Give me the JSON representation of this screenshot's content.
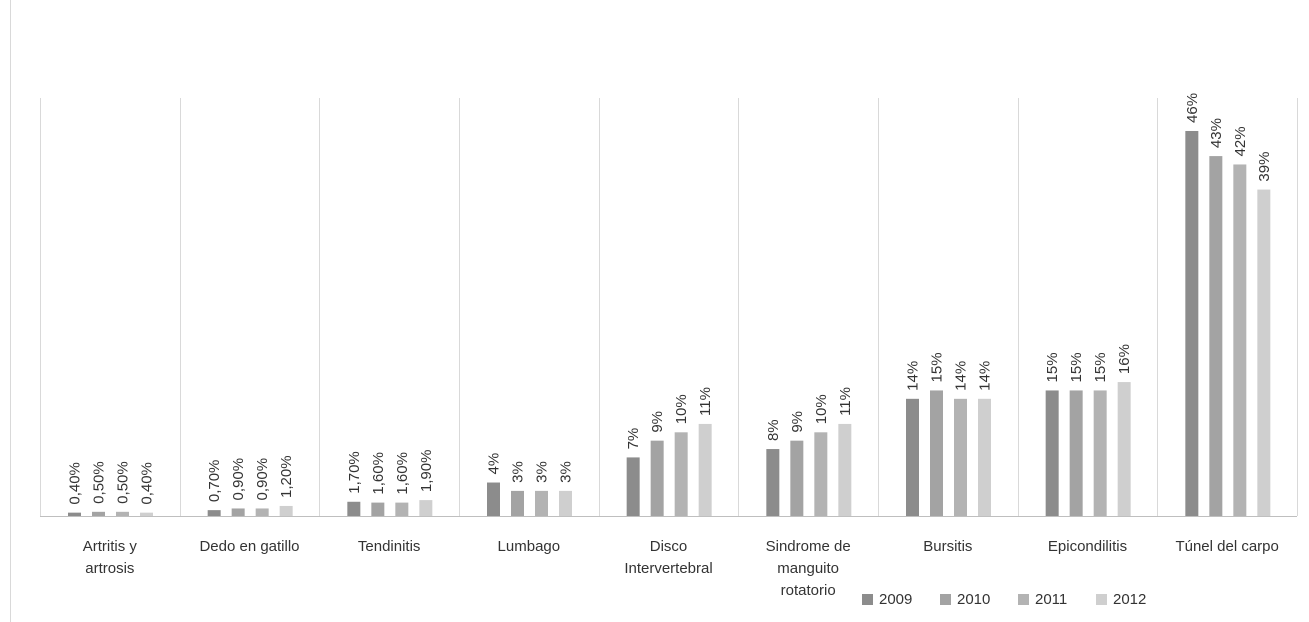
{
  "chart_data": {
    "type": "bar",
    "categories": [
      "Artritis y artrosis",
      "Dedo en gatillo",
      "Tendinitis",
      "Lumbago",
      "Disco Intervertebral",
      "Sindrome de manguito rotatorio",
      "Bursitis",
      "Epicondilitis",
      "Túnel del carpo"
    ],
    "category_lines": [
      [
        "Artritis y",
        "artrosis"
      ],
      [
        "Dedo en gatillo"
      ],
      [
        "Tendinitis"
      ],
      [
        "Lumbago"
      ],
      [
        "Disco",
        "Intervertebral"
      ],
      [
        "Sindrome de",
        "manguito",
        "rotatorio"
      ],
      [
        "Bursitis"
      ],
      [
        "Epicondilitis"
      ],
      [
        "Túnel del carpo"
      ]
    ],
    "series": [
      {
        "name": "2009",
        "color": "#8c8c8c",
        "values": [
          0.4,
          0.7,
          1.7,
          4,
          7,
          8,
          14,
          15,
          46
        ],
        "labels": [
          "0,40%",
          "0,70%",
          "1,70%",
          "4%",
          "7%",
          "8%",
          "14%",
          "15%",
          "46%"
        ]
      },
      {
        "name": "2010",
        "color": "#a3a3a3",
        "values": [
          0.5,
          0.9,
          1.6,
          3,
          9,
          9,
          15,
          15,
          43
        ],
        "labels": [
          "0,50%",
          "0,90%",
          "1,60%",
          "3%",
          "9%",
          "9%",
          "15%",
          "15%",
          "43%"
        ]
      },
      {
        "name": "2011",
        "color": "#b3b3b3",
        "values": [
          0.5,
          0.9,
          1.6,
          3,
          10,
          10,
          14,
          15,
          42
        ],
        "labels": [
          "0,50%",
          "0,90%",
          "1,60%",
          "3%",
          "10%",
          "10%",
          "14%",
          "15%",
          "42%"
        ]
      },
      {
        "name": "2012",
        "color": "#cfcfcf",
        "values": [
          0.4,
          1.2,
          1.9,
          3,
          11,
          11,
          14,
          16,
          39
        ],
        "labels": [
          "0,40%",
          "1,20%",
          "1,90%",
          "3%",
          "11%",
          "11%",
          "14%",
          "16%",
          "39%"
        ]
      }
    ],
    "ylim": [
      0,
      50
    ],
    "grid": false,
    "legend_position": "bottom-right"
  }
}
